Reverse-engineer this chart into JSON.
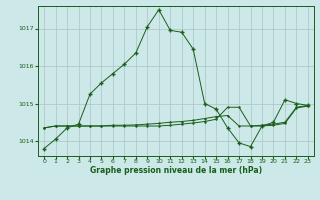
{
  "title": "Graphe pression niveau de la mer (hPa)",
  "background_color": "#cce8e8",
  "grid_color": "#b0c8c8",
  "line_color": "#1a5e1a",
  "xlim": [
    -0.5,
    23.5
  ],
  "ylim": [
    1013.6,
    1017.6
  ],
  "yticks": [
    1014,
    1015,
    1016,
    1017
  ],
  "xticks": [
    0,
    1,
    2,
    3,
    4,
    5,
    6,
    7,
    8,
    9,
    10,
    11,
    12,
    13,
    14,
    15,
    16,
    17,
    18,
    19,
    20,
    21,
    22,
    23
  ],
  "series_main": {
    "x": [
      0,
      1,
      2,
      3,
      4,
      5,
      6,
      7,
      8,
      9,
      10,
      11,
      12,
      13,
      14,
      15,
      16,
      17,
      18,
      19,
      20,
      21,
      22,
      23
    ],
    "y": [
      1013.8,
      1014.05,
      1014.35,
      1014.45,
      1015.25,
      1015.55,
      1015.8,
      1016.05,
      1016.35,
      1017.05,
      1017.5,
      1016.95,
      1016.9,
      1016.45,
      1015.0,
      1014.85,
      1014.35,
      1013.95,
      1013.85,
      1014.4,
      1014.5,
      1015.1,
      1015.0,
      1014.95
    ]
  },
  "series_flat1": {
    "x": [
      0,
      1,
      2,
      3,
      4,
      5,
      6,
      7,
      8,
      9,
      10,
      11,
      12,
      13,
      14,
      15,
      16,
      17,
      18,
      19,
      20,
      21,
      22,
      23
    ],
    "y": [
      1014.35,
      1014.4,
      1014.4,
      1014.4,
      1014.4,
      1014.4,
      1014.42,
      1014.42,
      1014.43,
      1014.45,
      1014.47,
      1014.5,
      1014.52,
      1014.55,
      1014.6,
      1014.65,
      1014.68,
      1014.4,
      1014.4,
      1014.42,
      1014.45,
      1014.5,
      1014.9,
      1014.95
    ]
  },
  "series_flat2": {
    "x": [
      0,
      1,
      2,
      3,
      4,
      5,
      6,
      7,
      8,
      9,
      10,
      11,
      12,
      13,
      14,
      15,
      16,
      17,
      18,
      19,
      20,
      21,
      22,
      23
    ],
    "y": [
      1014.35,
      1014.4,
      1014.4,
      1014.4,
      1014.4,
      1014.4,
      1014.4,
      1014.4,
      1014.4,
      1014.4,
      1014.4,
      1014.42,
      1014.45,
      1014.48,
      1014.52,
      1014.58,
      1014.9,
      1014.9,
      1014.4,
      1014.4,
      1014.42,
      1014.47,
      1014.88,
      1014.93
    ]
  }
}
